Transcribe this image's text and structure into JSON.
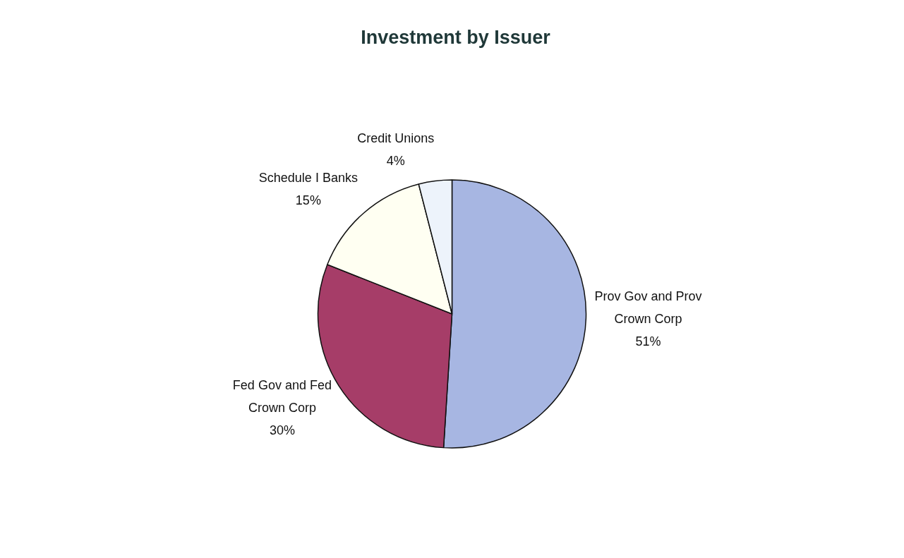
{
  "chart_data": {
    "type": "pie",
    "title": "Investment by Issuer",
    "categories": [
      "Prov Gov and Prov Crown Corp",
      "Fed Gov and Fed Crown Corp",
      "Schedule I Banks",
      "Credit Unions"
    ],
    "values": [
      51,
      30,
      15,
      4
    ],
    "value_labels": [
      "51%",
      "30%",
      "15%",
      "4%"
    ],
    "colors": [
      "#a7b6e2",
      "#a63d68",
      "#fffff2",
      "#edf3fb"
    ],
    "legend": false
  }
}
